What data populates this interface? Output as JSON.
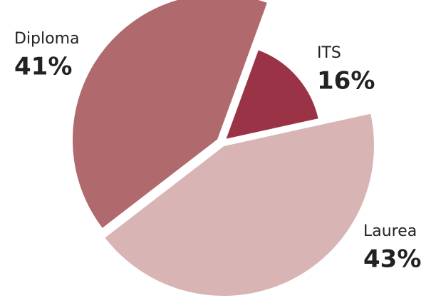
{
  "chart_data": {
    "type": "pie",
    "categories": [
      "ITS",
      "Laurea",
      "Diploma"
    ],
    "values": [
      16,
      43,
      41
    ],
    "value_labels": [
      "16%",
      "43%",
      "41%"
    ],
    "colors": [
      "#9b3347",
      "#d9b4b4",
      "#b0696c"
    ]
  }
}
